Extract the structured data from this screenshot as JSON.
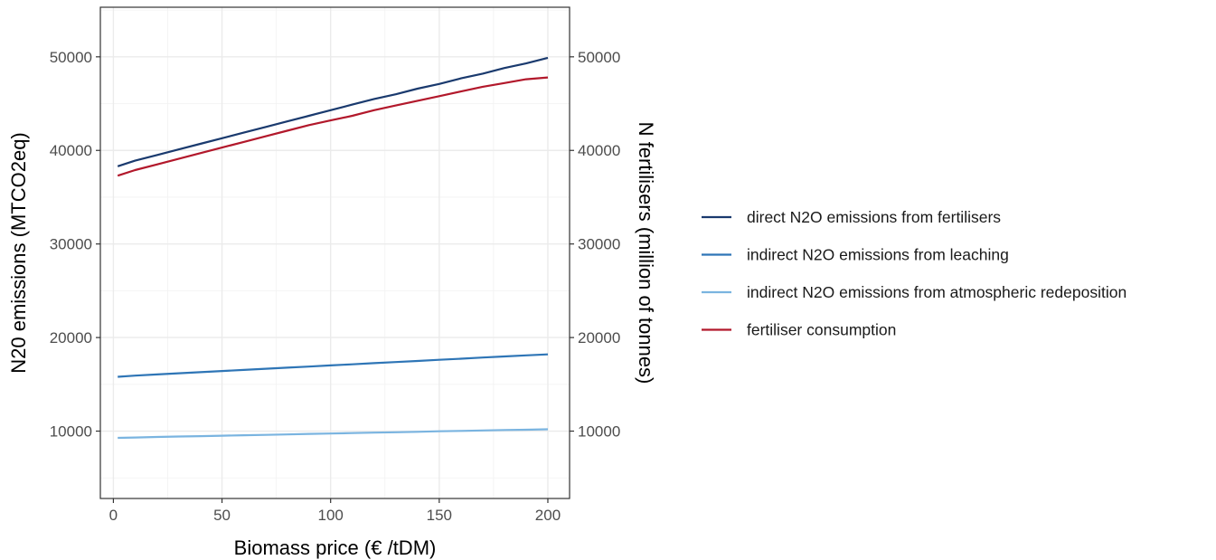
{
  "chart_data": {
    "type": "line",
    "xlabel": "Biomass price (€ /tDM)",
    "ylabel": "N20 emissions (MTCO2eq)",
    "ylabel_right": "N fertilisers (million of tonnes)",
    "xlim": [
      -6,
      210
    ],
    "ylim": [
      2800,
      55300
    ],
    "x_ticks": [
      0,
      50,
      100,
      150,
      200
    ],
    "x_tick_labels": [
      "0",
      "50",
      "100",
      "150",
      "200"
    ],
    "y_ticks": [
      10000,
      20000,
      30000,
      40000,
      50000
    ],
    "y_tick_labels": [
      "10000",
      "20000",
      "30000",
      "40000",
      "50000"
    ],
    "y2_tick_labels": [
      "10000",
      "20000",
      "30000",
      "40000",
      "50000"
    ],
    "x_minor_ticks": [
      25,
      75,
      125,
      175
    ],
    "y_minor_ticks": [
      5000,
      15000,
      25000,
      35000,
      45000,
      55000
    ],
    "grid": true,
    "legend_position": "right",
    "x": [
      2,
      10,
      20,
      30,
      40,
      50,
      60,
      70,
      80,
      90,
      100,
      110,
      120,
      130,
      140,
      150,
      160,
      170,
      180,
      190,
      200
    ],
    "series": [
      {
        "name": "direct N2O emissions from fertilisers",
        "color": "#1a3a6e",
        "values": [
          38300,
          38900,
          39500,
          40100,
          40700,
          41300,
          41900,
          42500,
          43100,
          43700,
          44300,
          44900,
          45500,
          46000,
          46600,
          47100,
          47700,
          48200,
          48800,
          49300,
          49900
        ]
      },
      {
        "name": "indirect N2O emissions from leaching",
        "color": "#2e75b6",
        "values": [
          15800,
          15930,
          16060,
          16180,
          16300,
          16420,
          16540,
          16660,
          16780,
          16900,
          17020,
          17140,
          17260,
          17380,
          17500,
          17620,
          17740,
          17860,
          17980,
          18100,
          18200
        ]
      },
      {
        "name": "indirect N2O emissions from atmospheric redeposition",
        "color": "#7ab4e0",
        "values": [
          9280,
          9320,
          9370,
          9420,
          9460,
          9510,
          9560,
          9600,
          9650,
          9700,
          9740,
          9790,
          9840,
          9880,
          9930,
          9980,
          10020,
          10070,
          10120,
          10150,
          10200
        ]
      },
      {
        "name": "fertiliser consumption",
        "color": "#b2182b",
        "values": [
          37300,
          37900,
          38500,
          39100,
          39700,
          40300,
          40900,
          41500,
          42100,
          42700,
          43200,
          43700,
          44300,
          44800,
          45300,
          45800,
          46300,
          46800,
          47200,
          47600,
          47800
        ]
      }
    ]
  }
}
